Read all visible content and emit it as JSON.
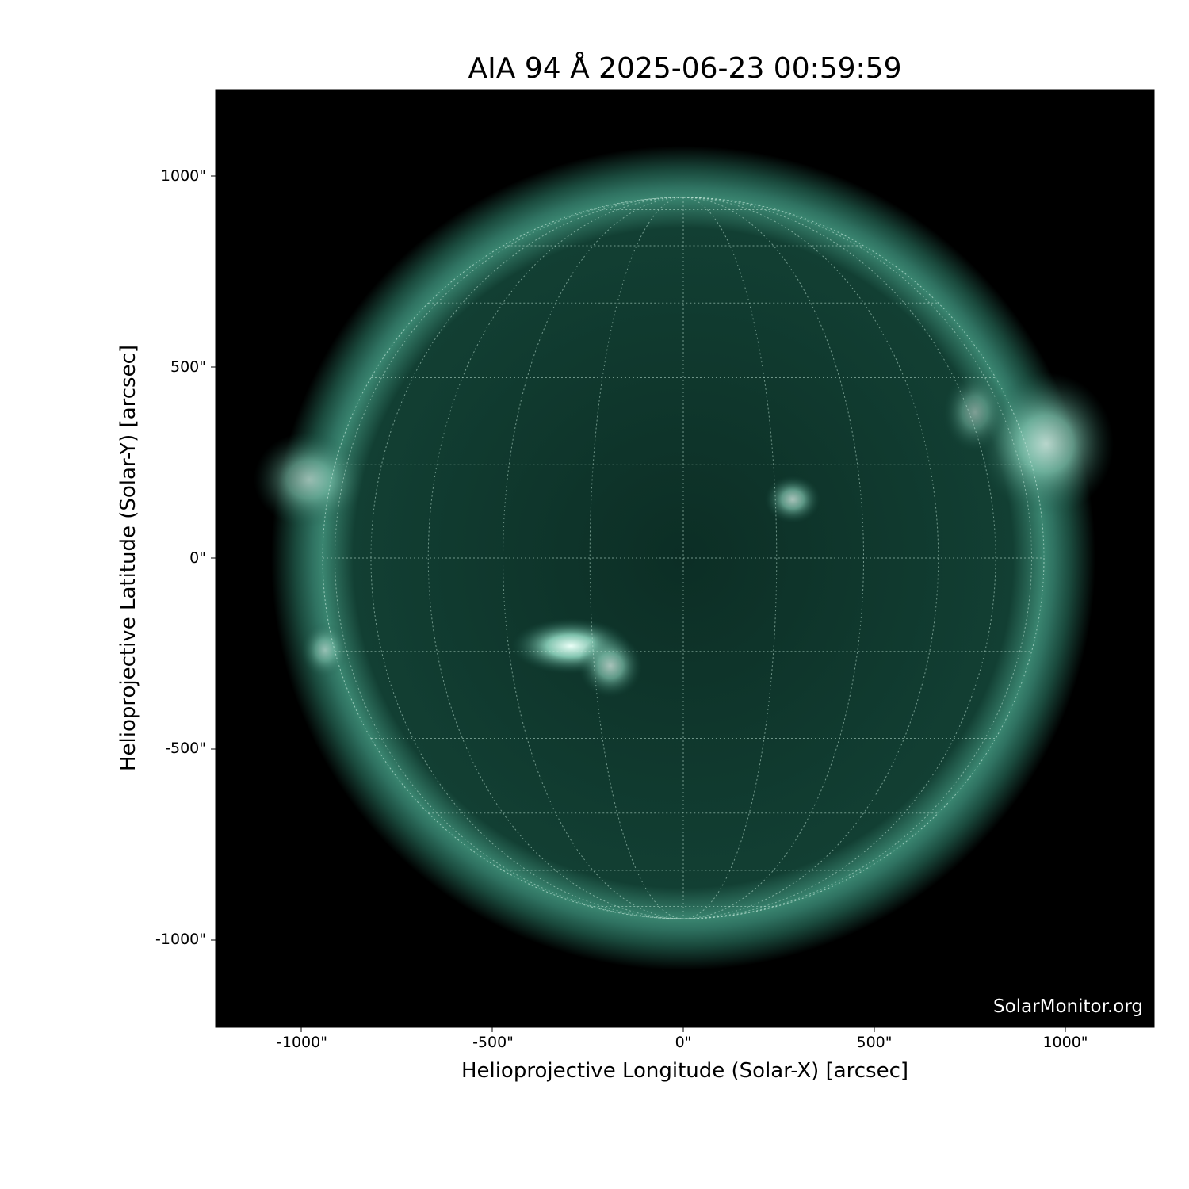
{
  "title": "AIA 94 Å 2025-06-23 00:59:59",
  "x_axis": {
    "label": "Helioprojective Longitude (Solar-X) [arcsec]",
    "ticks": [
      "-1000\"",
      "-500\"",
      "0\"",
      "500\"",
      "1000\""
    ],
    "tick_values": [
      -1000,
      -500,
      0,
      500,
      1000
    ]
  },
  "y_axis": {
    "label": "Helioprojective Latitude (Solar-Y) [arcsec]",
    "ticks": [
      "1000\"",
      "500\"",
      "0\"",
      "-500\"",
      "-1000\""
    ],
    "tick_values": [
      1000,
      500,
      0,
      -500,
      -1000
    ]
  },
  "watermark": "SolarMonitor.org",
  "colors": {
    "background": "#000000",
    "disk": "#0f3a2e",
    "limb": "#3f8a74",
    "bright": "#e8fff6",
    "grid": "#bfe3d6"
  }
}
